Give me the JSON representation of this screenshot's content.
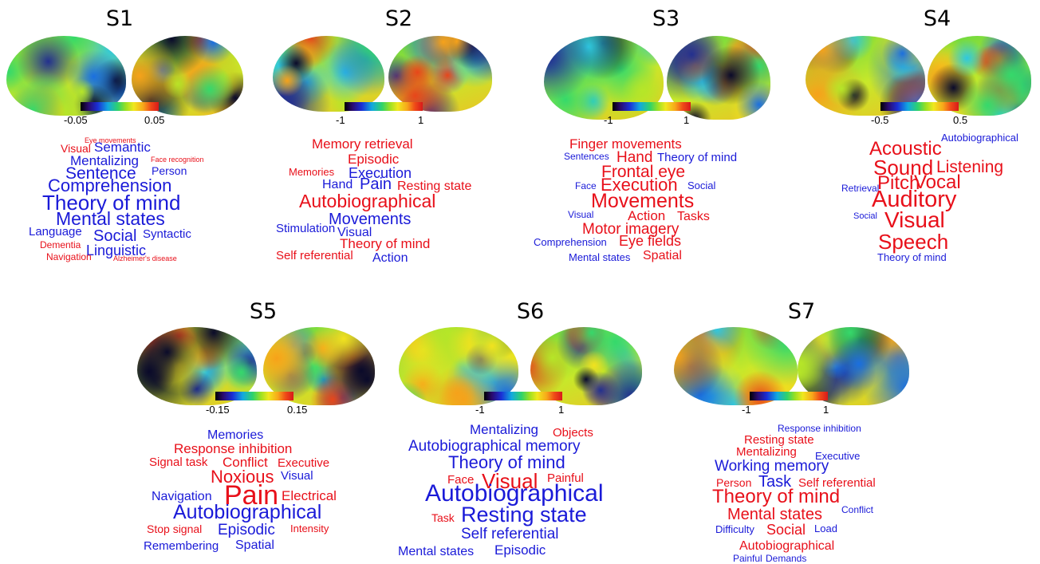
{
  "colors": {
    "positive": "#e8101a",
    "negative": "#1a1ad8"
  },
  "panels": [
    {
      "id": "S1",
      "cmin": "-0.05",
      "cmax": "0.05",
      "words": [
        {
          "t": "Eye movements",
          "c": "pos",
          "s": 9
        },
        {
          "t": "Visual",
          "c": "pos",
          "s": 14
        },
        {
          "t": "Semantic",
          "c": "neg",
          "s": 17
        },
        {
          "t": "Mentalizing",
          "c": "neg",
          "s": 17
        },
        {
          "t": "Face recognition",
          "c": "pos",
          "s": 9
        },
        {
          "t": "Sentence",
          "c": "neg",
          "s": 21
        },
        {
          "t": "Person",
          "c": "neg",
          "s": 14
        },
        {
          "t": "Comprehension",
          "c": "neg",
          "s": 22
        },
        {
          "t": "Theory of mind",
          "c": "neg",
          "s": 26
        },
        {
          "t": "Mental states",
          "c": "neg",
          "s": 23
        },
        {
          "t": "Language",
          "c": "neg",
          "s": 15
        },
        {
          "t": "Social",
          "c": "neg",
          "s": 20
        },
        {
          "t": "Syntactic",
          "c": "neg",
          "s": 15
        },
        {
          "t": "Dementia",
          "c": "pos",
          "s": 12
        },
        {
          "t": "Linguistic",
          "c": "neg",
          "s": 18
        },
        {
          "t": "Navigation",
          "c": "pos",
          "s": 12
        },
        {
          "t": "Alzheimer's disease",
          "c": "pos",
          "s": 9
        }
      ]
    },
    {
      "id": "S2",
      "cmin": "-1",
      "cmax": "1",
      "words": [
        {
          "t": "Memory retrieval",
          "c": "pos",
          "s": 17
        },
        {
          "t": "Episodic",
          "c": "pos",
          "s": 17
        },
        {
          "t": "Memories",
          "c": "pos",
          "s": 13
        },
        {
          "t": "Execution",
          "c": "neg",
          "s": 18
        },
        {
          "t": "Hand",
          "c": "neg",
          "s": 16
        },
        {
          "t": "Pain",
          "c": "neg",
          "s": 20
        },
        {
          "t": "Resting state",
          "c": "pos",
          "s": 16
        },
        {
          "t": "Autobiographical",
          "c": "pos",
          "s": 23
        },
        {
          "t": "Movements",
          "c": "neg",
          "s": 20
        },
        {
          "t": "Stimulation",
          "c": "neg",
          "s": 15
        },
        {
          "t": "Visual",
          "c": "neg",
          "s": 16
        },
        {
          "t": "Theory of mind",
          "c": "pos",
          "s": 17
        },
        {
          "t": "Self referential",
          "c": "pos",
          "s": 15
        },
        {
          "t": "Action",
          "c": "neg",
          "s": 16
        }
      ]
    },
    {
      "id": "S3",
      "cmin": "-1",
      "cmax": "1",
      "words": [
        {
          "t": "Finger movements",
          "c": "pos",
          "s": 17
        },
        {
          "t": "Sentences",
          "c": "neg",
          "s": 12
        },
        {
          "t": "Hand",
          "c": "pos",
          "s": 19
        },
        {
          "t": "Theory of mind",
          "c": "neg",
          "s": 15
        },
        {
          "t": "Frontal eye",
          "c": "pos",
          "s": 21
        },
        {
          "t": "Face",
          "c": "neg",
          "s": 12
        },
        {
          "t": "Execution",
          "c": "pos",
          "s": 22
        },
        {
          "t": "Social",
          "c": "neg",
          "s": 13
        },
        {
          "t": "Movements",
          "c": "pos",
          "s": 25
        },
        {
          "t": "Visual",
          "c": "neg",
          "s": 12
        },
        {
          "t": "Action",
          "c": "pos",
          "s": 17
        },
        {
          "t": "Tasks",
          "c": "pos",
          "s": 16
        },
        {
          "t": "Motor imagery",
          "c": "pos",
          "s": 19
        },
        {
          "t": "Comprehension",
          "c": "neg",
          "s": 13
        },
        {
          "t": "Eye fields",
          "c": "pos",
          "s": 18
        },
        {
          "t": "Mental states",
          "c": "neg",
          "s": 13
        },
        {
          "t": "Spatial",
          "c": "pos",
          "s": 16
        }
      ]
    },
    {
      "id": "S4",
      "cmin": "-0.5",
      "cmax": "0.5",
      "words": [
        {
          "t": "Autobiographical",
          "c": "neg",
          "s": 13
        },
        {
          "t": "Acoustic",
          "c": "pos",
          "s": 24
        },
        {
          "t": "Sound",
          "c": "pos",
          "s": 26
        },
        {
          "t": "Listening",
          "c": "pos",
          "s": 21
        },
        {
          "t": "Retrieval",
          "c": "neg",
          "s": 12
        },
        {
          "t": "Pitch",
          "c": "pos",
          "s": 24
        },
        {
          "t": "Vocal",
          "c": "pos",
          "s": 24
        },
        {
          "t": "Auditory",
          "c": "pos",
          "s": 29
        },
        {
          "t": "Social",
          "c": "neg",
          "s": 11
        },
        {
          "t": "Visual",
          "c": "pos",
          "s": 28
        },
        {
          "t": "Speech",
          "c": "pos",
          "s": 26
        },
        {
          "t": "Theory of mind",
          "c": "neg",
          "s": 13
        }
      ]
    },
    {
      "id": "S5",
      "cmin": "-0.15",
      "cmax": "0.15",
      "words": [
        {
          "t": "Memories",
          "c": "neg",
          "s": 16
        },
        {
          "t": "Response inhibition",
          "c": "pos",
          "s": 17
        },
        {
          "t": "Signal task",
          "c": "pos",
          "s": 15
        },
        {
          "t": "Conflict",
          "c": "pos",
          "s": 17
        },
        {
          "t": "Executive",
          "c": "pos",
          "s": 15
        },
        {
          "t": "Noxious",
          "c": "pos",
          "s": 22
        },
        {
          "t": "Visual",
          "c": "neg",
          "s": 15
        },
        {
          "t": "Navigation",
          "c": "neg",
          "s": 16
        },
        {
          "t": "Pain",
          "c": "pos",
          "s": 34
        },
        {
          "t": "Electrical",
          "c": "pos",
          "s": 17
        },
        {
          "t": "Autobiographical",
          "c": "neg",
          "s": 25
        },
        {
          "t": "Stop signal",
          "c": "pos",
          "s": 14
        },
        {
          "t": "Episodic",
          "c": "neg",
          "s": 19
        },
        {
          "t": "Intensity",
          "c": "pos",
          "s": 13
        },
        {
          "t": "Remembering",
          "c": "neg",
          "s": 15
        },
        {
          "t": "Spatial",
          "c": "neg",
          "s": 16
        }
      ]
    },
    {
      "id": "S6",
      "cmin": "-1",
      "cmax": "1",
      "words": [
        {
          "t": "Mentalizing",
          "c": "neg",
          "s": 17
        },
        {
          "t": "Objects",
          "c": "pos",
          "s": 15
        },
        {
          "t": "Autobiographical memory",
          "c": "neg",
          "s": 19
        },
        {
          "t": "Theory of mind",
          "c": "neg",
          "s": 22
        },
        {
          "t": "Face",
          "c": "pos",
          "s": 15
        },
        {
          "t": "Visual",
          "c": "pos",
          "s": 26
        },
        {
          "t": "Painful",
          "c": "pos",
          "s": 15
        },
        {
          "t": "Autobiographical",
          "c": "neg",
          "s": 30
        },
        {
          "t": "Task",
          "c": "pos",
          "s": 14
        },
        {
          "t": "Resting state",
          "c": "neg",
          "s": 27
        },
        {
          "t": "Self referential",
          "c": "neg",
          "s": 19
        },
        {
          "t": "Mental states",
          "c": "neg",
          "s": 16
        },
        {
          "t": "Episodic",
          "c": "neg",
          "s": 17
        }
      ]
    },
    {
      "id": "S7",
      "cmin": "-1",
      "cmax": "1",
      "words": [
        {
          "t": "Response inhibition",
          "c": "neg",
          "s": 12
        },
        {
          "t": "Resting state",
          "c": "pos",
          "s": 15
        },
        {
          "t": "Mentalizing",
          "c": "pos",
          "s": 15
        },
        {
          "t": "Executive",
          "c": "neg",
          "s": 13
        },
        {
          "t": "Working memory",
          "c": "neg",
          "s": 19
        },
        {
          "t": "Person",
          "c": "pos",
          "s": 14
        },
        {
          "t": "Task",
          "c": "neg",
          "s": 20
        },
        {
          "t": "Self referential",
          "c": "pos",
          "s": 15
        },
        {
          "t": "Theory of mind",
          "c": "pos",
          "s": 24
        },
        {
          "t": "Mental states",
          "c": "pos",
          "s": 20
        },
        {
          "t": "Conflict",
          "c": "neg",
          "s": 12
        },
        {
          "t": "Difficulty",
          "c": "neg",
          "s": 13
        },
        {
          "t": "Social",
          "c": "pos",
          "s": 18
        },
        {
          "t": "Load",
          "c": "neg",
          "s": 13
        },
        {
          "t": "Autobiographical",
          "c": "pos",
          "s": 16
        },
        {
          "t": "Painful",
          "c": "neg",
          "s": 12
        },
        {
          "t": "Demands",
          "c": "neg",
          "s": 12
        }
      ]
    }
  ]
}
